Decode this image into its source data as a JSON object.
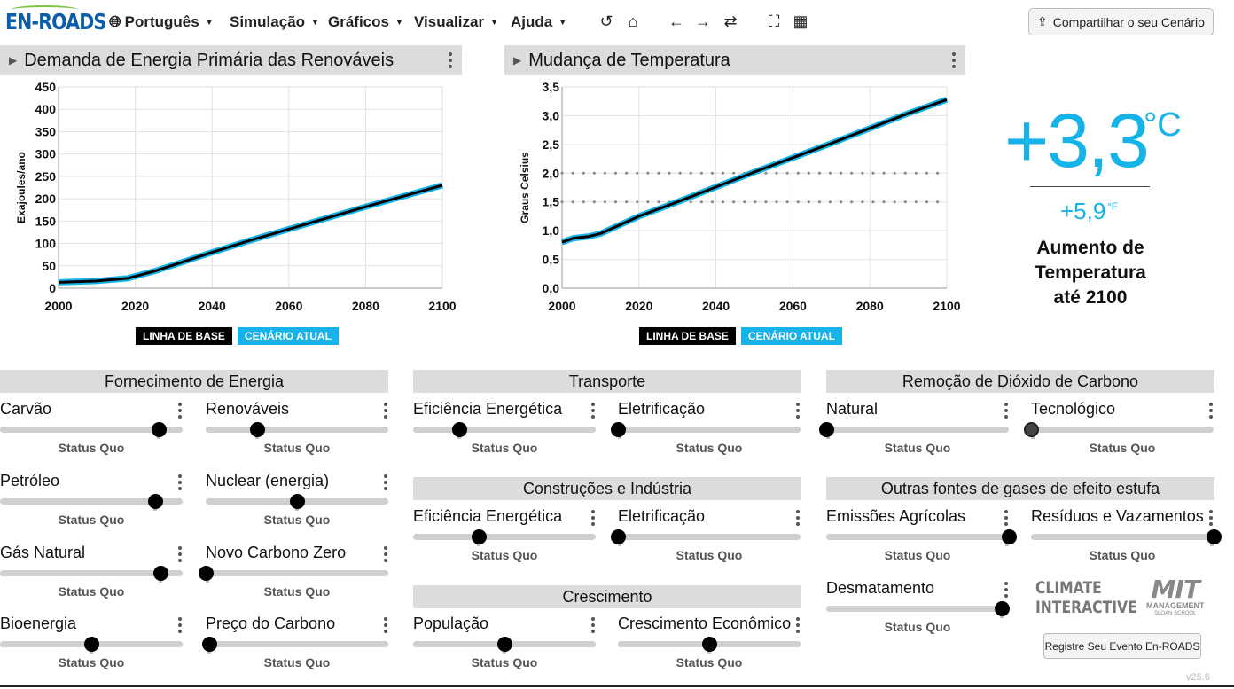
{
  "header": {
    "logo": "EN-ROADS",
    "menus": [
      "Português",
      "Simulação",
      "Gráficos",
      "Visualizar",
      "Ajuda"
    ],
    "nav_icons": [
      "undo-icon",
      "home-icon",
      "back-icon",
      "forward-icon",
      "compare-icon",
      "fullscreen-icon",
      "grid-icon"
    ],
    "share_label": "Compartilhar o seu Cenário"
  },
  "charts": [
    {
      "title": "Demanda de Energia Primária das Renováveis",
      "ylabel": "Exajoules/ano",
      "y_ticks": [
        "450",
        "400",
        "350",
        "300",
        "250",
        "200",
        "150",
        "100",
        "50",
        "0"
      ],
      "x_ticks": [
        "2000",
        "2020",
        "2040",
        "2060",
        "2080",
        "2100"
      ]
    },
    {
      "title": "Mudança de Temperatura",
      "ylabel": "Graus Celsius",
      "y_ticks": [
        "3,5",
        "3,0",
        "2,5",
        "2,0",
        "1,5",
        "1,0",
        "0,5",
        "0,0"
      ],
      "x_ticks": [
        "2000",
        "2020",
        "2040",
        "2060",
        "2080",
        "2100"
      ]
    }
  ],
  "legend": {
    "baseline": "LINHA DE BASE",
    "current": "CENÁRIO ATUAL"
  },
  "chart_data": [
    {
      "type": "line",
      "title": "Demanda de Energia Primária das Renováveis",
      "xlabel": "",
      "ylabel": "Exajoules/ano",
      "xlim": [
        2000,
        2100
      ],
      "ylim": [
        0,
        450
      ],
      "x": [
        2000,
        2010,
        2018,
        2025,
        2030,
        2040,
        2050,
        2060,
        2070,
        2080,
        2090,
        2100
      ],
      "series": [
        {
          "name": "LINHA DE BASE",
          "values": [
            13,
            16,
            22,
            38,
            52,
            80,
            107,
            132,
            157,
            182,
            206,
            230
          ]
        },
        {
          "name": "CENÁRIO ATUAL",
          "values": [
            13,
            16,
            22,
            38,
            52,
            80,
            107,
            132,
            157,
            182,
            206,
            230
          ]
        }
      ],
      "colors": {
        "baseline": "#000000",
        "current": "#16b3e8"
      }
    },
    {
      "type": "line",
      "title": "Mudança de Temperatura",
      "xlabel": "",
      "ylabel": "Graus Celsius",
      "xlim": [
        2000,
        2100
      ],
      "ylim": [
        0,
        3.5
      ],
      "reference_lines": [
        2.0,
        1.5
      ],
      "x": [
        2000,
        2003,
        2007,
        2010,
        2015,
        2020,
        2030,
        2040,
        2050,
        2060,
        2070,
        2080,
        2090,
        2100
      ],
      "series": [
        {
          "name": "LINHA DE BASE",
          "values": [
            0.8,
            0.87,
            0.9,
            0.95,
            1.1,
            1.25,
            1.5,
            1.76,
            2.02,
            2.27,
            2.52,
            2.78,
            3.04,
            3.28
          ]
        },
        {
          "name": "CENÁRIO ATUAL",
          "values": [
            0.8,
            0.87,
            0.9,
            0.95,
            1.1,
            1.25,
            1.5,
            1.76,
            2.02,
            2.27,
            2.52,
            2.78,
            3.04,
            3.28
          ]
        }
      ],
      "colors": {
        "baseline": "#000000",
        "current": "#16b3e8"
      }
    }
  ],
  "temperature": {
    "celsius": "+3,3",
    "celsius_unit": "°C",
    "fahrenheit": "+5,9",
    "fahrenheit_unit": "°F",
    "caption_lines": [
      "Aumento de",
      "Temperatura",
      "até 2100"
    ]
  },
  "sections": [
    "Fornecimento de Energia",
    "Transporte",
    "Remoção de Dióxido de Carbono",
    "Construções e Indústria",
    "Outras fontes de gases de efeito estufa",
    "Crescimento"
  ],
  "status_label": "Status Quo",
  "sliders": [
    {
      "label": "Carvão",
      "value": 0.87
    },
    {
      "label": "Renováveis",
      "value": 0.28
    },
    {
      "label": "Petróleo",
      "value": 0.85
    },
    {
      "label": "Nuclear (energia)",
      "value": 0.5
    },
    {
      "label": "Gás Natural",
      "value": 0.88
    },
    {
      "label": "Novo Carbono Zero",
      "value": 0.0
    },
    {
      "label": "Bioenergia",
      "value": 0.5
    },
    {
      "label": "Preço do Carbono",
      "value": 0.02
    },
    {
      "label": "Eficiência Energética",
      "value": 0.25
    },
    {
      "label": "Eletrificação",
      "value": 0.0
    },
    {
      "label": "Eficiência Energética",
      "value": 0.36
    },
    {
      "label": "Eletrificação",
      "value": 0.0
    },
    {
      "label": "População",
      "value": 0.5
    },
    {
      "label": "Crescimento Econômico",
      "value": 0.5
    },
    {
      "label": "Natural",
      "value": 0.0
    },
    {
      "label": "Tecnológico",
      "value": 0.0
    },
    {
      "label": "Emissões Agrícolas",
      "value": 1.0
    },
    {
      "label": "Resíduos e Vazamentos",
      "value": 1.0
    },
    {
      "label": "Desmatamento",
      "value": 0.96
    }
  ],
  "footer": {
    "climate_line1": "CLIMATE",
    "climate_line2": "INTERACTIVE",
    "mit_line1": "MIT",
    "mit_line2": "MANAGEMENT",
    "mit_line3": "SLOAN SCHOOL",
    "register_label": "Registre Seu Evento En-ROADS",
    "version": "v25.6"
  }
}
